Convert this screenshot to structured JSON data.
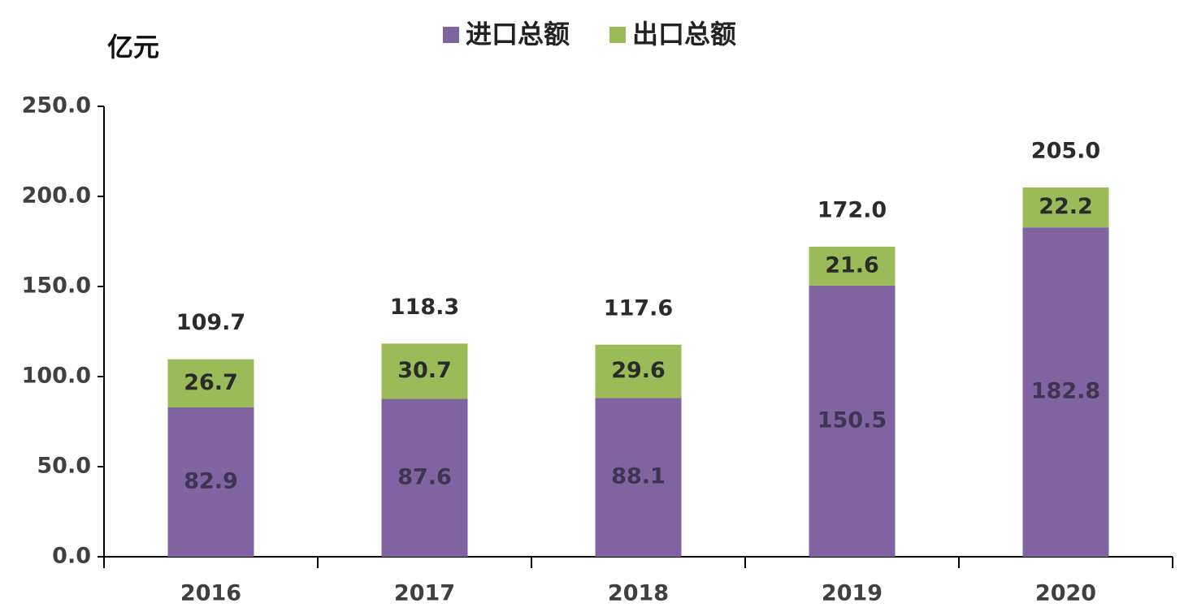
{
  "chart_data": {
    "type": "stacked_bar",
    "y_label": "亿元",
    "categories": [
      "2016",
      "2017",
      "2018",
      "2019",
      "2020"
    ],
    "series": [
      {
        "name": "进口总额",
        "color": "#8064a2",
        "values": [
          82.9,
          87.6,
          88.1,
          150.5,
          182.8
        ]
      },
      {
        "name": "出口总额",
        "color": "#9bbb59",
        "values": [
          26.7,
          30.7,
          29.6,
          21.6,
          22.2
        ]
      }
    ],
    "totals": [
      109.7,
      118.3,
      117.6,
      172.0,
      205.0
    ],
    "total_labels": [
      "109.7",
      "118.3",
      "117.6",
      "172.0",
      "205.0"
    ],
    "ylim": [
      0,
      250
    ],
    "yticks": [
      {
        "value": 0,
        "label": "0.0"
      },
      {
        "value": 50,
        "label": "50.0"
      },
      {
        "value": 100,
        "label": "100.0"
      },
      {
        "value": 150,
        "label": "150.0"
      },
      {
        "value": 200,
        "label": "200.0"
      },
      {
        "value": 250,
        "label": "250.0"
      }
    ],
    "legend": "top"
  }
}
